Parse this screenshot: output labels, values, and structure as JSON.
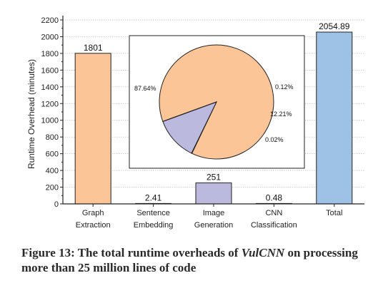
{
  "chart_data": {
    "type": "bar",
    "title": "",
    "ylabel": "Runtime Overhead  (minutes)",
    "xlabel": "",
    "ylim": [
      0,
      2200
    ],
    "yticks": [
      0,
      200,
      400,
      600,
      800,
      1000,
      1200,
      1400,
      1600,
      1800,
      2000,
      2200
    ],
    "grid": true,
    "categories": [
      [
        "Graph",
        "Extraction"
      ],
      [
        "Sentence",
        "Embedding"
      ],
      [
        "Image",
        "Generation"
      ],
      [
        "CNN",
        "Classification"
      ],
      [
        "Total"
      ]
    ],
    "values": [
      1801,
      2.41,
      251,
      0.48,
      2054.89
    ],
    "value_labels": [
      "1801",
      "2.41",
      "251",
      "0.48",
      "2054.89"
    ],
    "bar_colors": [
      "#fcc598",
      "#fcc598",
      "#bcb9de",
      "#bcb9de",
      "#9ec2e6"
    ],
    "inset_pie": {
      "type": "pie",
      "values": [
        87.64,
        0.12,
        12.21,
        0.02
      ],
      "labels": [
        "87.64%",
        "0.12%",
        "12.21%",
        "0.02%"
      ],
      "colors": [
        "#fcc598",
        "#fcc598",
        "#bcb9de",
        "#bcb9de"
      ]
    }
  },
  "caption": {
    "prefix": "Figure 13: The total runtime overheads of ",
    "emphasis": "VulCNN",
    "suffix": " on processing more than 25 million lines of code"
  }
}
